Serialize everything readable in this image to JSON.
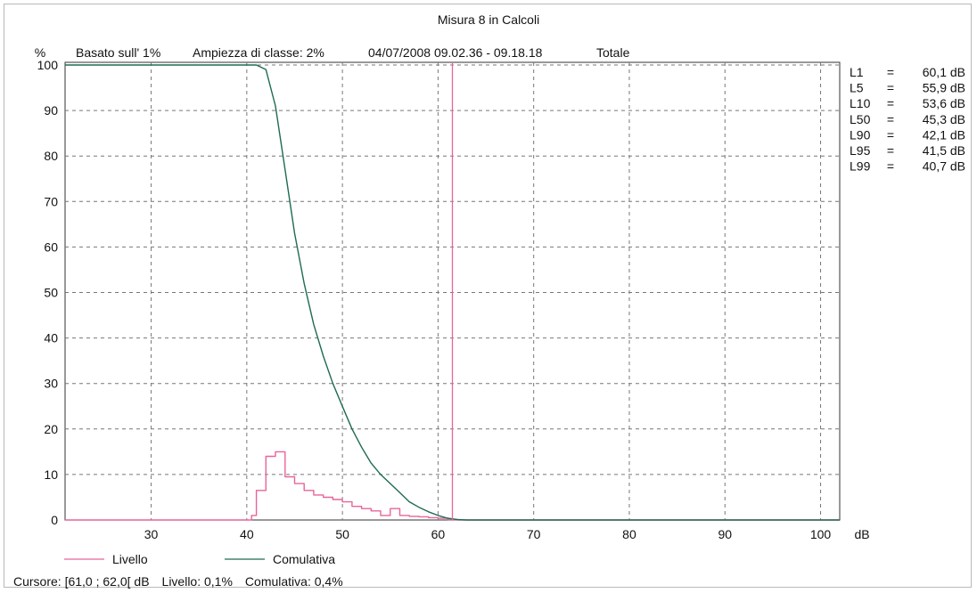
{
  "chart_data": {
    "type": "area",
    "title": "Misura 8 in Calcoli",
    "subtitle": {
      "unit": "%",
      "basis": "Basato sull' 1%",
      "class_width": "Ampiezza di classe: 2%",
      "period": "04/07/2008 09.02.36 - 09.18.18",
      "scope": "Totale"
    },
    "xlabel": "dB",
    "ylabel": "%",
    "xlim": [
      21,
      102
    ],
    "ylim": [
      0,
      100
    ],
    "x_ticks": [
      30,
      40,
      50,
      60,
      70,
      80,
      90,
      100
    ],
    "y_ticks": [
      0,
      10,
      20,
      30,
      40,
      50,
      60,
      70,
      80,
      90,
      100
    ],
    "grid": true,
    "cursor_x": 61.5,
    "series": [
      {
        "name": "Livello",
        "color": "#e8649a",
        "style": "step",
        "points": [
          [
            21,
            0
          ],
          [
            40,
            0
          ],
          [
            40.5,
            1
          ],
          [
            41,
            6.5
          ],
          [
            42,
            14
          ],
          [
            43,
            15
          ],
          [
            44,
            9.5
          ],
          [
            45,
            8
          ],
          [
            46,
            6.5
          ],
          [
            47,
            5.5
          ],
          [
            48,
            5
          ],
          [
            49,
            4.5
          ],
          [
            50,
            4
          ],
          [
            51,
            3
          ],
          [
            52,
            2.5
          ],
          [
            53,
            2
          ],
          [
            54,
            1
          ],
          [
            55,
            2.5
          ],
          [
            56,
            1
          ],
          [
            57,
            0.8
          ],
          [
            58,
            0.7
          ],
          [
            59,
            0.5
          ],
          [
            60,
            0.4
          ],
          [
            61,
            0.1
          ],
          [
            62,
            0
          ],
          [
            102,
            0
          ]
        ]
      },
      {
        "name": "Comulativa",
        "color": "#1f6b4f",
        "style": "line",
        "points": [
          [
            21,
            100
          ],
          [
            40,
            100
          ],
          [
            41,
            100
          ],
          [
            42,
            99
          ],
          [
            43,
            91
          ],
          [
            44,
            77
          ],
          [
            45,
            63
          ],
          [
            46,
            52
          ],
          [
            47,
            43
          ],
          [
            48,
            36
          ],
          [
            49,
            30
          ],
          [
            50,
            25
          ],
          [
            51,
            20
          ],
          [
            52,
            16
          ],
          [
            53,
            12.5
          ],
          [
            54,
            10
          ],
          [
            55,
            8
          ],
          [
            56,
            6
          ],
          [
            57,
            4
          ],
          [
            58,
            2.8
          ],
          [
            59,
            1.8
          ],
          [
            60,
            1
          ],
          [
            61,
            0.4
          ],
          [
            62,
            0.1
          ],
          [
            63,
            0
          ],
          [
            102,
            0
          ]
        ]
      }
    ],
    "percentile_table": [
      {
        "label": "L1",
        "value": "60,1 dB"
      },
      {
        "label": "L5",
        "value": "55,9 dB"
      },
      {
        "label": "L10",
        "value": "53,6 dB"
      },
      {
        "label": "L50",
        "value": "45,3 dB"
      },
      {
        "label": "L90",
        "value": "42,1 dB"
      },
      {
        "label": "L95",
        "value": "41,5 dB"
      },
      {
        "label": "L99",
        "value": "40,7 dB"
      }
    ]
  },
  "legend": {
    "livello": "Livello",
    "comulativa": "Comulativa"
  },
  "status": {
    "cursor": "Cursore: [61,0 ; 62,0[ dB",
    "livello": "Livello: 0,1%",
    "comulativa": "Comulativa: 0,4%"
  },
  "colors": {
    "livello": "#e8649a",
    "comulativa": "#1f6b4f",
    "cursor": "#e8649a",
    "grid": "#777777"
  }
}
